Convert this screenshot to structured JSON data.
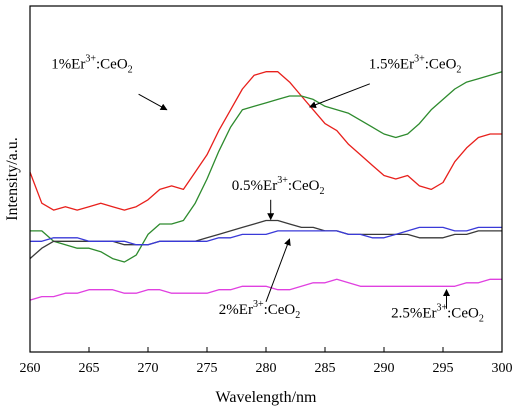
{
  "chart_data": {
    "type": "line",
    "xlabel": "Wavelength/nm",
    "ylabel": "Intensity/a.u.",
    "xlim": [
      260,
      300
    ],
    "ylim": [
      0,
      1
    ],
    "x_ticks": [
      "260",
      "265",
      "270",
      "275",
      "280",
      "285",
      "290",
      "295",
      "300"
    ],
    "grid": false,
    "legend": "none",
    "series": [
      {
        "name": "1%Er3+:CeO2",
        "color": "#e8201c",
        "x": [
          260,
          261,
          262,
          263,
          264,
          265,
          266,
          267,
          268,
          269,
          270,
          271,
          272,
          273,
          274,
          275,
          276,
          277,
          278,
          279,
          280,
          281,
          282,
          283,
          284,
          285,
          286,
          287,
          288,
          289,
          290,
          291,
          292,
          293,
          294,
          295,
          296,
          297,
          298,
          299,
          300
        ],
        "values": [
          0.52,
          0.43,
          0.41,
          0.42,
          0.41,
          0.42,
          0.43,
          0.42,
          0.41,
          0.42,
          0.44,
          0.47,
          0.48,
          0.47,
          0.52,
          0.57,
          0.64,
          0.7,
          0.76,
          0.8,
          0.81,
          0.81,
          0.78,
          0.74,
          0.7,
          0.66,
          0.64,
          0.6,
          0.57,
          0.54,
          0.51,
          0.5,
          0.51,
          0.48,
          0.47,
          0.49,
          0.55,
          0.59,
          0.62,
          0.63,
          0.63
        ]
      },
      {
        "name": "1.5%Er3+:CeO2",
        "color": "#2e8b2e",
        "x": [
          260,
          261,
          262,
          263,
          264,
          265,
          266,
          267,
          268,
          269,
          270,
          271,
          272,
          273,
          274,
          275,
          276,
          277,
          278,
          279,
          280,
          281,
          282,
          283,
          284,
          285,
          286,
          287,
          288,
          289,
          290,
          291,
          292,
          293,
          294,
          295,
          296,
          297,
          298,
          299,
          300
        ],
        "values": [
          0.35,
          0.35,
          0.32,
          0.31,
          0.3,
          0.3,
          0.29,
          0.27,
          0.26,
          0.28,
          0.34,
          0.37,
          0.37,
          0.38,
          0.43,
          0.5,
          0.58,
          0.65,
          0.7,
          0.71,
          0.72,
          0.73,
          0.74,
          0.74,
          0.73,
          0.71,
          0.7,
          0.69,
          0.67,
          0.65,
          0.63,
          0.62,
          0.63,
          0.66,
          0.7,
          0.73,
          0.76,
          0.78,
          0.79,
          0.8,
          0.81
        ]
      },
      {
        "name": "0.5%Er3+:CeO2",
        "color": "#3a3a3a",
        "x": [
          260,
          261,
          262,
          263,
          264,
          265,
          266,
          267,
          268,
          269,
          270,
          271,
          272,
          273,
          274,
          275,
          276,
          277,
          278,
          279,
          280,
          281,
          282,
          283,
          284,
          285,
          286,
          287,
          288,
          289,
          290,
          291,
          292,
          293,
          294,
          295,
          296,
          297,
          298,
          299,
          300
        ],
        "values": [
          0.27,
          0.3,
          0.32,
          0.32,
          0.32,
          0.32,
          0.32,
          0.32,
          0.31,
          0.31,
          0.31,
          0.32,
          0.32,
          0.32,
          0.32,
          0.33,
          0.34,
          0.35,
          0.36,
          0.37,
          0.38,
          0.38,
          0.37,
          0.36,
          0.36,
          0.35,
          0.35,
          0.34,
          0.34,
          0.34,
          0.34,
          0.34,
          0.34,
          0.33,
          0.33,
          0.33,
          0.34,
          0.34,
          0.35,
          0.35,
          0.35
        ]
      },
      {
        "name": "blue",
        "color": "#3a3ad8",
        "x": [
          260,
          261,
          262,
          263,
          264,
          265,
          266,
          267,
          268,
          269,
          270,
          271,
          272,
          273,
          274,
          275,
          276,
          277,
          278,
          279,
          280,
          281,
          282,
          283,
          284,
          285,
          286,
          287,
          288,
          289,
          290,
          291,
          292,
          293,
          294,
          295,
          296,
          297,
          298,
          299,
          300
        ],
        "values": [
          0.32,
          0.32,
          0.33,
          0.33,
          0.33,
          0.32,
          0.32,
          0.32,
          0.32,
          0.31,
          0.31,
          0.32,
          0.32,
          0.32,
          0.32,
          0.32,
          0.33,
          0.33,
          0.34,
          0.34,
          0.34,
          0.35,
          0.35,
          0.35,
          0.35,
          0.35,
          0.35,
          0.34,
          0.34,
          0.33,
          0.33,
          0.34,
          0.35,
          0.36,
          0.36,
          0.36,
          0.35,
          0.35,
          0.36,
          0.36,
          0.36
        ]
      },
      {
        "name": "2.5%Er3+:CeO2",
        "color": "#e040e0",
        "x": [
          260,
          261,
          262,
          263,
          264,
          265,
          266,
          267,
          268,
          269,
          270,
          271,
          272,
          273,
          274,
          275,
          276,
          277,
          278,
          279,
          280,
          281,
          282,
          283,
          284,
          285,
          286,
          287,
          288,
          289,
          290,
          291,
          292,
          293,
          294,
          295,
          296,
          297,
          298,
          299,
          300
        ],
        "values": [
          0.15,
          0.16,
          0.16,
          0.17,
          0.17,
          0.18,
          0.18,
          0.18,
          0.17,
          0.17,
          0.18,
          0.18,
          0.17,
          0.17,
          0.17,
          0.17,
          0.18,
          0.18,
          0.19,
          0.19,
          0.19,
          0.18,
          0.18,
          0.19,
          0.2,
          0.2,
          0.21,
          0.2,
          0.19,
          0.19,
          0.19,
          0.19,
          0.19,
          0.19,
          0.19,
          0.19,
          0.19,
          0.2,
          0.2,
          0.21,
          0.21
        ]
      }
    ],
    "annotations": [
      {
        "id": "a1",
        "base": "1%Er",
        "sup": "3+",
        "mid": ":CeO",
        "sub": "2",
        "label_x": 261.8,
        "label_y": 0.82,
        "arrow_from": [
          269.2,
          0.745
        ],
        "arrow_to": [
          271.6,
          0.7
        ]
      },
      {
        "id": "a15",
        "base": "1.5%Er",
        "sup": "3+",
        "mid": ":CeO",
        "sub": "2",
        "label_x": 288.7,
        "label_y": 0.82,
        "arrow_from": [
          288.8,
          0.775
        ],
        "arrow_to": [
          283.7,
          0.708
        ]
      },
      {
        "id": "a05",
        "base": "0.5%Er",
        "sup": "3+",
        "mid": ":CeO",
        "sub": "2",
        "label_x": 277.1,
        "label_y": 0.468,
        "arrow_from": [
          280.4,
          0.44
        ],
        "arrow_to": [
          280.4,
          0.383
        ]
      },
      {
        "id": "a2",
        "base": "2%Er",
        "sup": "3+",
        "mid": ":CeO",
        "sub": "2",
        "label_x": 276.0,
        "label_y": 0.11,
        "arrow_from": [
          280.0,
          0.145
        ],
        "arrow_to": [
          282.0,
          0.327
        ]
      },
      {
        "id": "a25",
        "base": "2.5%Er",
        "sup": "3+",
        "mid": ":CeO",
        "sub": "2",
        "label_x": 290.6,
        "label_y": 0.1,
        "arrow_from": [
          295.3,
          0.125
        ],
        "arrow_to": [
          295.3,
          0.18
        ]
      }
    ]
  }
}
